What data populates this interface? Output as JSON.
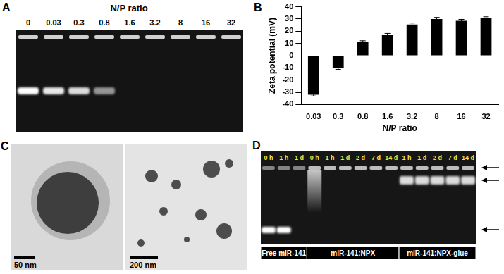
{
  "figure": {
    "A": {
      "label": "A",
      "title": "N/P ratio",
      "lanes": [
        "0",
        "0.03",
        "0.3",
        "0.8",
        "1.6",
        "3.2",
        "8",
        "16",
        "32"
      ]
    },
    "C": {
      "label": "C",
      "scale_bars": [
        "50 nm",
        "200 nm"
      ]
    },
    "D": {
      "label": "D",
      "groups": [
        {
          "name": "Free miR-141",
          "lanes": [
            "0 h",
            "1 h",
            "1 d"
          ]
        },
        {
          "name": "miR-141:NPX",
          "lanes": [
            "0 h",
            "1 h",
            "1 d",
            "2 d",
            "7 d",
            "14 d"
          ]
        },
        {
          "name": "miR-141:NPX-glue",
          "lanes": [
            "1 h",
            "1 d",
            "2 d",
            "7 d",
            "14 d"
          ]
        }
      ]
    }
  },
  "chart_data": {
    "label": "B",
    "type": "bar",
    "x_label": "N/P ratio",
    "y_label": "Zeta potential (mV)",
    "categories": [
      "0.03",
      "0.3",
      "0.8",
      "1.6",
      "3.2",
      "8",
      "16",
      "32"
    ],
    "values": [
      -32,
      -10,
      11,
      17,
      25.5,
      30,
      28.5,
      30.5
    ],
    "errors": [
      1,
      1.2,
      1.2,
      1.2,
      1.2,
      1.3,
      1.2,
      1.3
    ],
    "color": "#000000",
    "ylim": [
      -40,
      40
    ],
    "yticks": [
      -40,
      -30,
      -20,
      -10,
      0,
      10,
      20,
      30,
      40
    ],
    "grid": false
  }
}
